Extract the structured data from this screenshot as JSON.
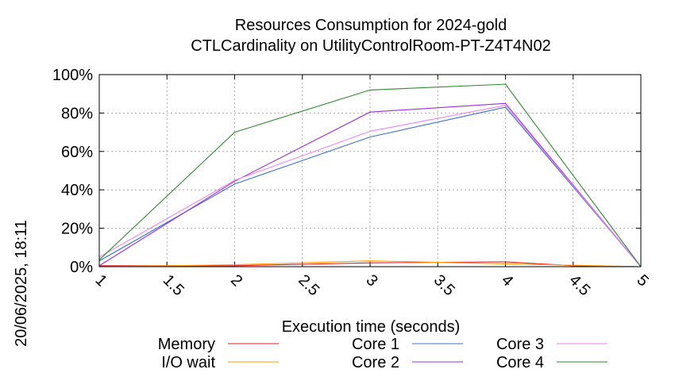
{
  "chart_data": {
    "type": "line",
    "title": [
      "Resources Consumption for 2024-gold",
      "CTLCardinality on UtilityControlRoom-PT-Z4T4N02"
    ],
    "xlabel": "Execution time (seconds)",
    "ylabel": "",
    "side_label": "20/06/2025, 18:11",
    "xlim": [
      1,
      5
    ],
    "ylim": [
      0,
      100
    ],
    "x_ticks": [
      "1",
      "1.5",
      "2",
      "2.5",
      "3",
      "3.5",
      "4",
      "4.5",
      "5"
    ],
    "y_ticks": [
      "0%",
      "20%",
      "40%",
      "60%",
      "80%",
      "100%"
    ],
    "grid": true,
    "legend_position": "bottom",
    "series": [
      {
        "name": "Memory",
        "color": "#e41a1c",
        "x": [
          1,
          2,
          3,
          4,
          4.5,
          5
        ],
        "y": [
          0.5,
          0.5,
          2,
          2.5,
          0.5,
          0
        ]
      },
      {
        "name": "I/O wait",
        "color": "#ff9900",
        "x": [
          1,
          2,
          3,
          4,
          5
        ],
        "y": [
          0,
          1,
          3,
          1.5,
          0
        ]
      },
      {
        "name": "Core 1",
        "color": "#3b6fd1",
        "x": [
          1,
          2,
          3,
          4,
          5
        ],
        "y": [
          3,
          43,
          67.5,
          83,
          0
        ]
      },
      {
        "name": "Core 2",
        "color": "#9b30d9",
        "x": [
          1,
          2,
          3,
          4,
          5
        ],
        "y": [
          0.5,
          44.5,
          80.5,
          85,
          0
        ]
      },
      {
        "name": "Core 3",
        "color": "#ee82ee",
        "x": [
          1,
          2,
          3,
          4,
          5
        ],
        "y": [
          5,
          45,
          70.5,
          84,
          0
        ]
      },
      {
        "name": "Core 4",
        "color": "#2e8b2e",
        "x": [
          1,
          2,
          3,
          4,
          5
        ],
        "y": [
          3.5,
          70,
          92,
          95,
          0
        ]
      }
    ]
  }
}
